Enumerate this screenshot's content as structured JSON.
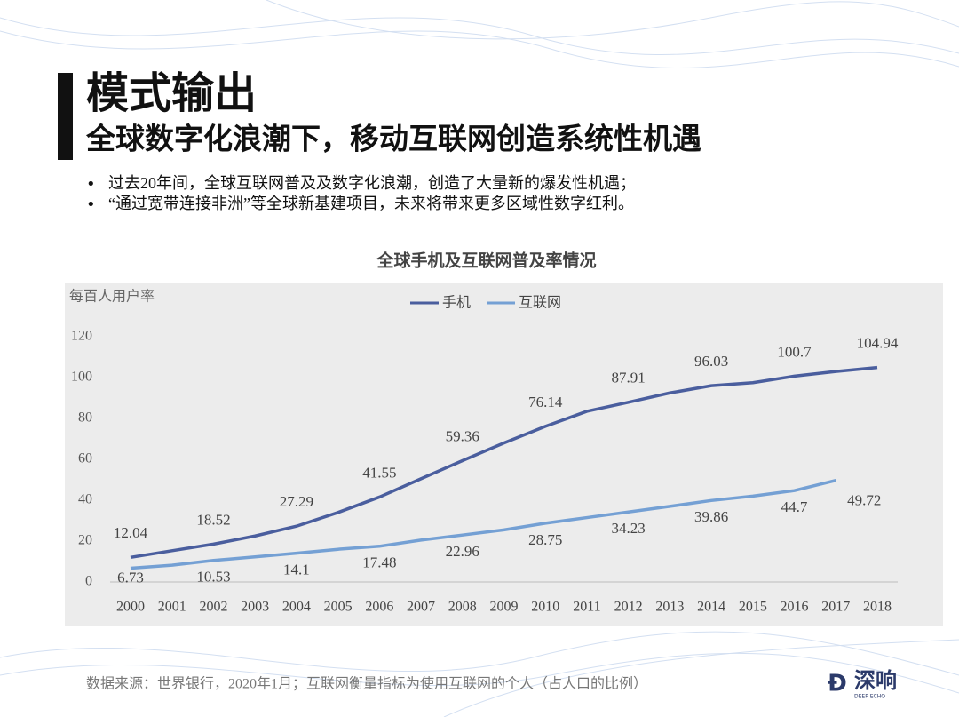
{
  "header": {
    "title": "模式输出",
    "subtitle": "全球数字化浪潮下，移动互联网创造系统性机遇"
  },
  "bullets": [
    "过去20年间，全球互联网普及及数字化浪潮，创造了大量新的爆发性机遇；",
    "“通过宽带连接非洲”等全球新基建项目，未来将带来更多区域性数字红利。"
  ],
  "footer": {
    "source": "数据来源：世界银行，2020年1月；互联网衡量指标为使用互联网的个人（占人口的比例）",
    "logo": "深响",
    "logo_sub": "DEEP ECHO"
  },
  "chart_data": {
    "type": "line",
    "title": "全球手机及互联网普及率情况",
    "y_label": "每百人用户率",
    "categories": [
      "2000",
      "2001",
      "2002",
      "2003",
      "2004",
      "2005",
      "2006",
      "2007",
      "2008",
      "2009",
      "2010",
      "2011",
      "2012",
      "2013",
      "2014",
      "2015",
      "2016",
      "2017",
      "2018"
    ],
    "series": [
      {
        "name": "手机",
        "color": "#4a5e9e",
        "values": [
          12.04,
          15.3,
          18.52,
          22.5,
          27.29,
          34,
          41.55,
          50.5,
          59.36,
          68,
          76.14,
          83.5,
          87.91,
          92.5,
          96.03,
          97.5,
          100.7,
          103,
          104.94
        ]
      },
      {
        "name": "互联网",
        "color": "#74a0d4",
        "values": [
          6.73,
          8.2,
          10.53,
          12.3,
          14.1,
          16,
          17.48,
          20.5,
          22.96,
          25.5,
          28.75,
          31.5,
          34.23,
          37,
          39.86,
          42,
          44.7,
          49.72,
          null
        ]
      }
    ],
    "ylim": [
      0,
      120
    ],
    "yticks": [
      0,
      20,
      40,
      60,
      80,
      100,
      120
    ],
    "grid": false,
    "legend": "top"
  }
}
